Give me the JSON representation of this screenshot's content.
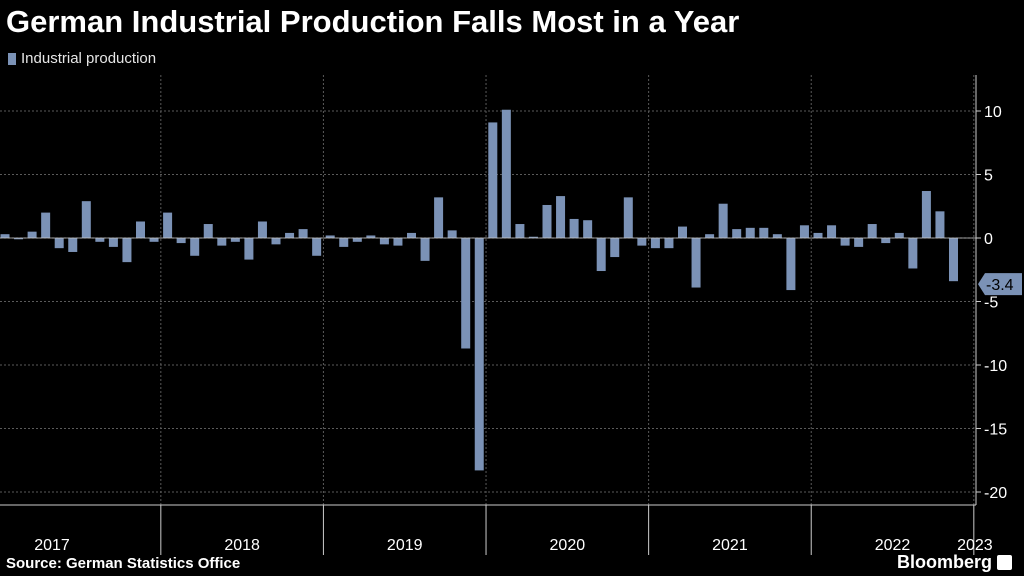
{
  "chart_data": {
    "type": "bar",
    "title": "German Industrial Production Falls Most in a Year",
    "legend": {
      "label": "Industrial production",
      "position": "top-left"
    },
    "series": [
      {
        "name": "Industrial production",
        "values": [
          0.3,
          -0.1,
          0.5,
          2.0,
          -0.8,
          -1.1,
          2.9,
          -0.3,
          -0.7,
          -1.9,
          1.3,
          -0.3,
          2.0,
          -0.4,
          -1.4,
          1.1,
          -0.6,
          -0.3,
          -1.7,
          1.3,
          -0.5,
          0.4,
          0.7,
          -1.4,
          0.2,
          -0.7,
          -0.3,
          0.2,
          -0.5,
          -0.6,
          0.4,
          -1.8,
          3.2,
          0.6,
          -8.7,
          -18.3,
          9.1,
          10.1,
          1.1,
          0.1,
          2.6,
          3.3,
          1.5,
          1.4,
          -2.6,
          -1.5,
          3.2,
          -0.6,
          -0.8,
          -0.8,
          0.9,
          -3.9,
          0.3,
          2.7,
          0.7,
          0.8,
          0.8,
          0.3,
          -4.1,
          1.0,
          0.4,
          1.0,
          -0.6,
          -0.7,
          1.1,
          -0.4,
          0.4,
          -2.4,
          3.7,
          2.1,
          -3.4
        ]
      }
    ],
    "x_labels": [
      "2017",
      "2018",
      "2019",
      "2020",
      "2021",
      "2022",
      "2023"
    ],
    "year_start_index": [
      0,
      12,
      24,
      36,
      48,
      60,
      72
    ],
    "yticks": [
      10,
      5,
      0,
      -5,
      -10,
      -15,
      -20
    ],
    "ylim": [
      -20,
      10
    ],
    "last_value_label": "-3.4",
    "grid": true,
    "colors": {
      "bar": "#7b92b6",
      "background": "#000000",
      "grid": "#5a5a5a",
      "axis": "#cccccc",
      "text": "#ffffff"
    }
  },
  "footer": {
    "source": "Source: German Statistics Office",
    "brand": "Bloomberg"
  }
}
